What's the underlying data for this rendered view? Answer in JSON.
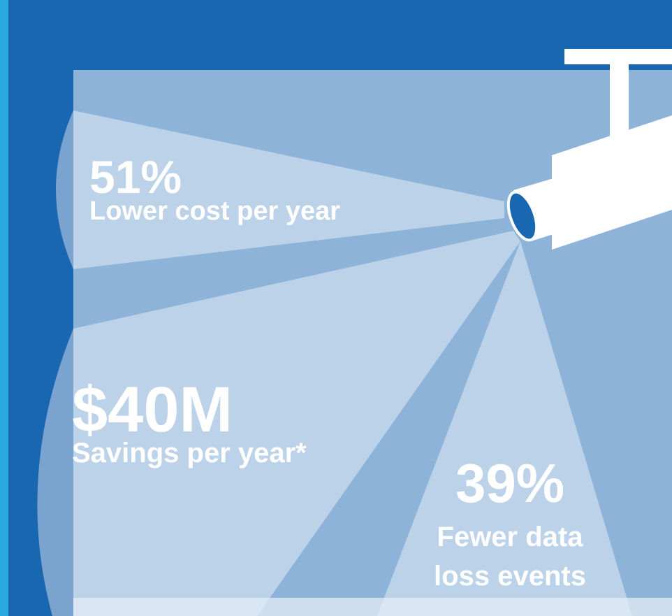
{
  "stats": [
    {
      "value": "51%",
      "label": "Lower cost per year"
    },
    {
      "value": "$40M",
      "label": "Savings per year*"
    },
    {
      "value": "39%",
      "label": "Fewer data loss events"
    }
  ]
}
